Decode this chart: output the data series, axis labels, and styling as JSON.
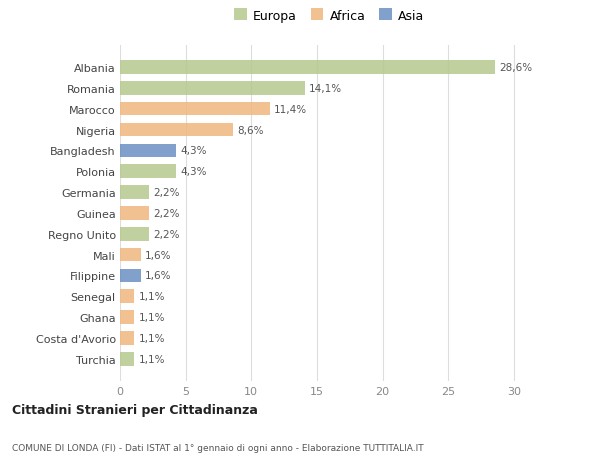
{
  "countries": [
    "Albania",
    "Romania",
    "Marocco",
    "Nigeria",
    "Bangladesh",
    "Polonia",
    "Germania",
    "Guinea",
    "Regno Unito",
    "Mali",
    "Filippine",
    "Senegal",
    "Ghana",
    "Costa d'Avorio",
    "Turchia"
  ],
  "values": [
    28.6,
    14.1,
    11.4,
    8.6,
    4.3,
    4.3,
    2.2,
    2.2,
    2.2,
    1.6,
    1.6,
    1.1,
    1.1,
    1.1,
    1.1
  ],
  "labels": [
    "28,6%",
    "14,1%",
    "11,4%",
    "8,6%",
    "4,3%",
    "4,3%",
    "2,2%",
    "2,2%",
    "2,2%",
    "1,6%",
    "1,6%",
    "1,1%",
    "1,1%",
    "1,1%",
    "1,1%"
  ],
  "continents": [
    "Europa",
    "Europa",
    "Africa",
    "Africa",
    "Asia",
    "Europa",
    "Europa",
    "Africa",
    "Europa",
    "Africa",
    "Asia",
    "Africa",
    "Africa",
    "Africa",
    "Europa"
  ],
  "colors": {
    "Europa": "#b5c98e",
    "Africa": "#f0b77e",
    "Asia": "#6b8fc2"
  },
  "xlim": [
    0,
    32
  ],
  "xticks": [
    0,
    5,
    10,
    15,
    20,
    25,
    30
  ],
  "title": "Cittadini Stranieri per Cittadinanza",
  "subtitle": "COMUNE DI LONDA (FI) - Dati ISTAT al 1° gennaio di ogni anno - Elaborazione TUTTITALIA.IT",
  "bg_color": "#ffffff",
  "grid_color": "#dddddd",
  "bar_height": 0.65
}
